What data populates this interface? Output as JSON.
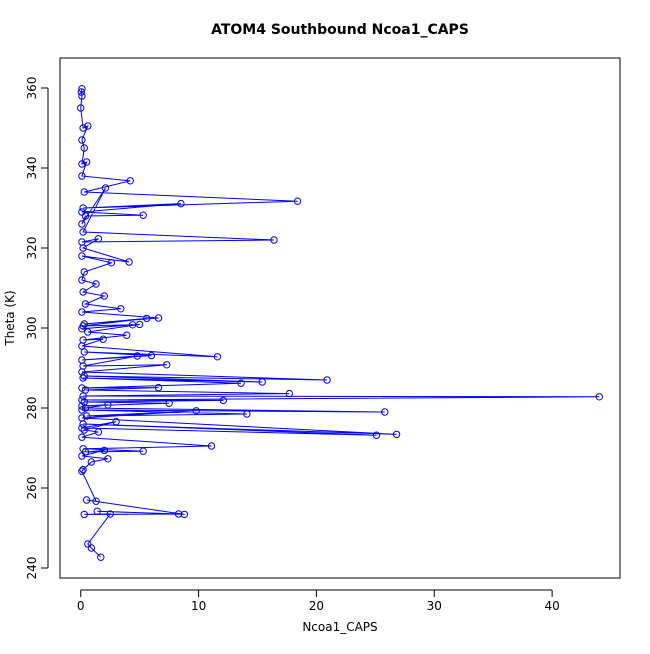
{
  "chart_data": {
    "type": "line",
    "title": "ATOM4 Southbound Ncoa1_CAPS",
    "x_label": "Ncoa1_CAPS",
    "y_label": "Theta (K)",
    "xlim": [
      -1.76,
      45.76
    ],
    "ylim": [
      237.5,
      367.5
    ],
    "xticks": [
      0,
      10,
      20,
      30,
      40
    ],
    "yticks": [
      240,
      260,
      280,
      300,
      320,
      340,
      360
    ],
    "series": [
      {
        "color": "#0000ff",
        "x": [
          0.1,
          0.05,
          0.1,
          0,
          0.2,
          0.6,
          0.1,
          0.3,
          0.1,
          0.5,
          0.1,
          4.2,
          0.3,
          18.4,
          0.2,
          8.5,
          0.1,
          5.3,
          0.4,
          0.1,
          2.1,
          0.2,
          16.4,
          0.1,
          1.5,
          0.2,
          4.1,
          0.1,
          2.6,
          0.3,
          0.1,
          1.3,
          0.2,
          2.0,
          0.4,
          3.4,
          0.1,
          6.6,
          0.3,
          5.6,
          0.2,
          4.4,
          0.1,
          5.0,
          0.6,
          3.9,
          0.2,
          1.9,
          0.1,
          11.6,
          0.3,
          6.0,
          0.1,
          4.8,
          0.2,
          7.3,
          0.1,
          20.9,
          0.3,
          15.4,
          0.2,
          13.6,
          0.1,
          6.6,
          0.4,
          17.7,
          0.2,
          44,
          0.1,
          12.1,
          0.3,
          7.5,
          0.1,
          2.3,
          0.4,
          25.8,
          0.1,
          14.1,
          0.5,
          9.8,
          0.1,
          26.8,
          0.2,
          25.1,
          0.1,
          3.0,
          0.3,
          1.5,
          0.1,
          11.1,
          0.2,
          5.3,
          0.4,
          2.0,
          0.1,
          2.3,
          0.9,
          0.2,
          0.1,
          1.3,
          0.5,
          8.8,
          1.4,
          8.3,
          0.3,
          2.5,
          0.6,
          0.9,
          1.7
        ],
        "values": [
          359.8,
          359,
          358,
          355,
          350,
          350.5,
          347,
          345,
          341,
          341.5,
          338,
          336.8,
          334,
          331.7,
          330,
          331.1,
          329,
          328.2,
          328,
          326,
          335,
          324,
          322,
          321.5,
          322.3,
          320,
          316.5,
          318,
          316.3,
          314,
          312,
          311,
          309,
          308,
          306,
          304.8,
          304,
          302.5,
          301,
          302.4,
          300.5,
          300.8,
          299.8,
          300.9,
          299,
          298.2,
          297,
          297.2,
          295.5,
          292.8,
          294,
          293.1,
          292,
          293,
          290.5,
          290.8,
          289,
          287,
          288,
          286.5,
          287.5,
          286.2,
          285,
          285.1,
          284.5,
          283.6,
          283,
          282.8,
          282,
          281.9,
          281.5,
          281.2,
          280.5,
          280.8,
          280,
          279,
          279.5,
          278.5,
          278,
          279.3,
          277.5,
          273.4,
          276,
          273.2,
          275,
          276.6,
          274.5,
          274,
          272.7,
          270.5,
          269.8,
          269.2,
          269,
          269.4,
          268,
          267.3,
          266.5,
          264.6,
          264.2,
          256.7,
          257,
          253.4,
          254.2,
          253.5,
          253.4,
          253.5,
          246,
          245,
          242.7
        ]
      }
    ]
  }
}
